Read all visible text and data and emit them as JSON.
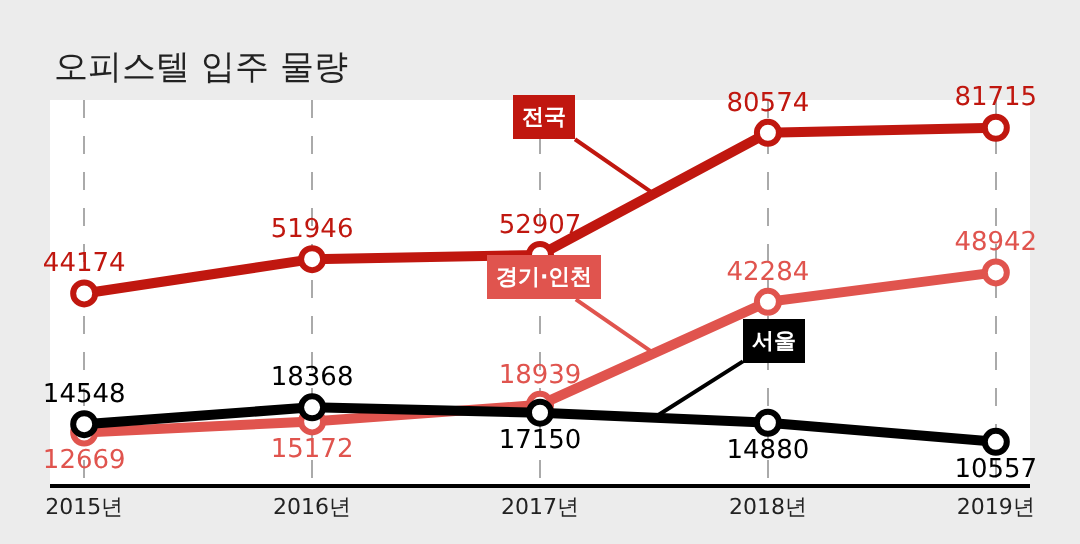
{
  "chart_data": {
    "type": "line",
    "title": "오피스텔 입주 물량",
    "categories": [
      "2015년",
      "2016년",
      "2017년",
      "2018년",
      "2019년"
    ],
    "series": [
      {
        "name": "전국",
        "color": "#c0170f",
        "values": [
          44174,
          51946,
          52907,
          80574,
          81715
        ]
      },
      {
        "name": "경기·인천",
        "color": "#e0544e",
        "values": [
          12669,
          15172,
          18939,
          42284,
          48942
        ]
      },
      {
        "name": "서울",
        "color": "#000000",
        "values": [
          14548,
          18368,
          17150,
          14880,
          10557
        ]
      }
    ],
    "data_labels": true,
    "marker": "circle",
    "line_style": "solid",
    "grid": "x",
    "legend": false
  }
}
